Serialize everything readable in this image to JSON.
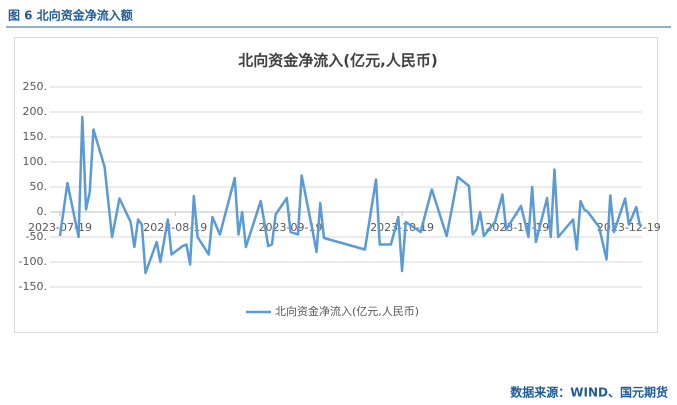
{
  "header": "图 6  北向资金净流入额",
  "source": "数据来源：WIND、国元期货",
  "chart_data": {
    "type": "line",
    "title": "北向资金净流入(亿元,人民币)",
    "x": [
      "2023-07-19",
      "2023-07-21",
      "2023-07-24",
      "2023-07-25",
      "2023-07-26",
      "2023-07-27",
      "2023-07-28",
      "2023-07-31",
      "2023-08-02",
      "2023-08-04",
      "2023-08-07",
      "2023-08-08",
      "2023-08-09",
      "2023-08-10",
      "2023-08-11",
      "2023-08-14",
      "2023-08-15",
      "2023-08-17",
      "2023-08-18",
      "2023-08-21",
      "2023-08-22",
      "2023-08-23",
      "2023-08-24",
      "2023-08-25",
      "2023-08-28",
      "2023-08-29",
      "2023-08-31",
      "2023-09-04",
      "2023-09-05",
      "2023-09-06",
      "2023-09-07",
      "2023-09-11",
      "2023-09-13",
      "2023-09-14",
      "2023-09-15",
      "2023-09-18",
      "2023-09-19",
      "2023-09-21",
      "2023-09-22",
      "2023-09-25",
      "2023-09-26",
      "2023-09-27",
      "2023-09-28",
      "2023-10-09",
      "2023-10-12",
      "2023-10-13",
      "2023-10-16",
      "2023-10-18",
      "2023-10-19",
      "2023-10-20",
      "2023-10-23",
      "2023-10-24",
      "2023-10-27",
      "2023-10-31",
      "2023-11-03",
      "2023-11-06",
      "2023-11-07",
      "2023-11-08",
      "2023-11-09",
      "2023-11-10",
      "2023-11-13",
      "2023-11-15",
      "2023-11-16",
      "2023-11-20",
      "2023-11-22",
      "2023-11-23",
      "2023-11-24",
      "2023-11-27",
      "2023-11-28",
      "2023-11-29",
      "2023-11-30",
      "2023-12-04",
      "2023-12-05",
      "2023-12-06",
      "2023-12-07",
      "2023-12-08",
      "2023-12-11",
      "2023-12-13",
      "2023-12-14",
      "2023-12-15",
      "2023-12-18",
      "2023-12-19",
      "2023-12-21",
      "2023-12-22"
    ],
    "series": [
      {
        "name": "北向资金净流入(亿元,人民币)",
        "color": "#5b9bd5",
        "values": [
          -48,
          58,
          -50,
          190,
          5,
          40,
          165,
          90,
          -50,
          27,
          -20,
          -70,
          -15,
          -25,
          -122,
          -60,
          -100,
          -15,
          -85,
          -68,
          -65,
          -105,
          32,
          -50,
          -85,
          -10,
          -45,
          68,
          -45,
          0,
          -70,
          22,
          -68,
          -65,
          -5,
          28,
          -40,
          -45,
          73,
          -40,
          -80,
          18,
          -52,
          -75,
          65,
          -65,
          -65,
          -10,
          -118,
          -20,
          -35,
          -40,
          45,
          -48,
          70,
          52,
          -45,
          -35,
          0,
          -48,
          -20,
          35,
          -35,
          12,
          -50,
          50,
          -60,
          28,
          -50,
          85,
          -50,
          -15,
          -75,
          22,
          5,
          0,
          -30,
          -95,
          33,
          -40,
          27,
          -25,
          10,
          -28
        ]
      }
    ],
    "xlim": [
      "2023-07-19",
      "2023-12-22"
    ],
    "xticks": [
      "2023-07-19",
      "2023-08-19",
      "2023-09-19",
      "2023-10-19",
      "2023-11-19",
      "2023-12-19"
    ],
    "ylim": [
      -150,
      250
    ],
    "yticks": [
      {
        "value": 250,
        "label": "250."
      },
      {
        "value": 200,
        "label": "200."
      },
      {
        "value": 150,
        "label": "150."
      },
      {
        "value": 100,
        "label": "100."
      },
      {
        "value": 50,
        "label": "50."
      },
      {
        "value": 0,
        "label": "0."
      },
      {
        "value": -50,
        "label": "-50."
      },
      {
        "value": -100,
        "label": "-100."
      },
      {
        "value": -150,
        "label": "-150."
      }
    ],
    "grid": true
  }
}
